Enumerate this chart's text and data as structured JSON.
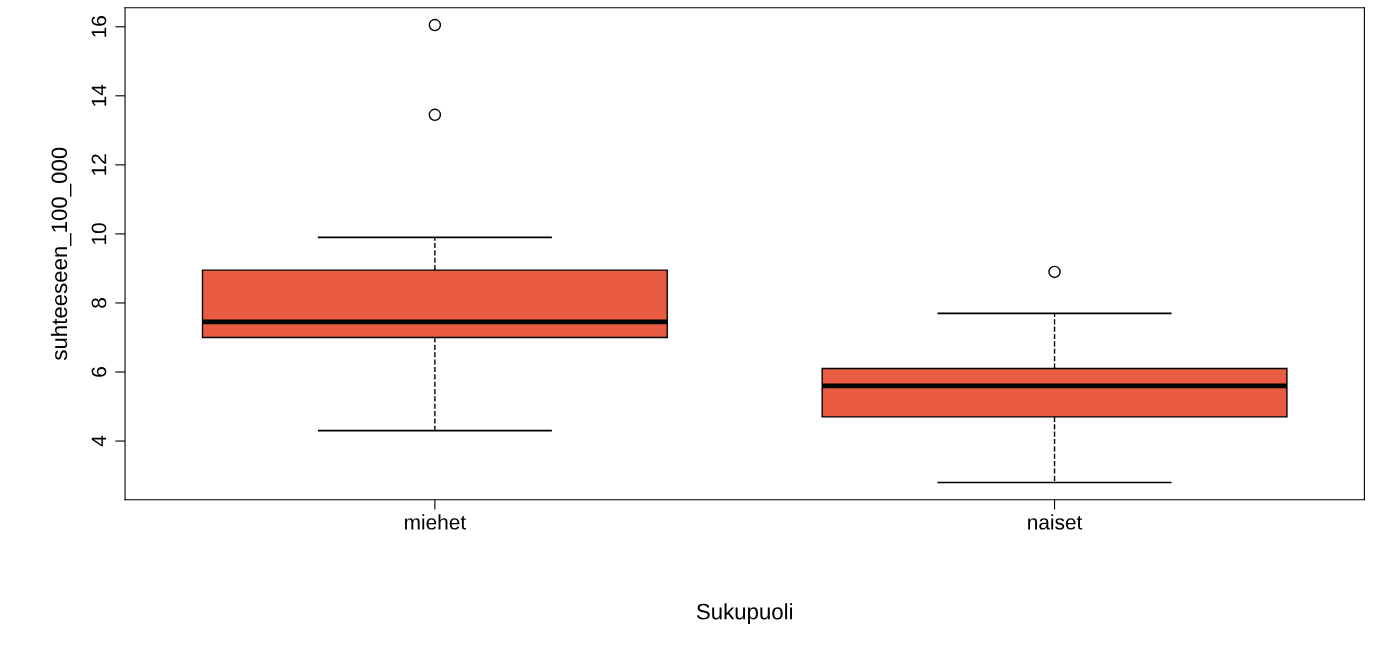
{
  "chart_data": {
    "type": "box",
    "xlabel": "Sukupuoli",
    "ylabel": "suhteeseen_100_000",
    "categories": [
      "miehet",
      "naiset"
    ],
    "boxes": [
      {
        "low": 4.3,
        "q1": 7.0,
        "median": 7.45,
        "q3": 8.95,
        "high": 9.9,
        "outliers": [
          13.45,
          16.05
        ]
      },
      {
        "low": 2.8,
        "q1": 4.7,
        "median": 5.6,
        "q3": 6.1,
        "high": 7.7,
        "outliers": [
          8.9
        ]
      }
    ],
    "color": "#e95c42",
    "ylim": [
      2.3,
      16.55
    ],
    "yticks": [
      4,
      6,
      8,
      10,
      12,
      14,
      16
    ],
    "grid": false
  }
}
